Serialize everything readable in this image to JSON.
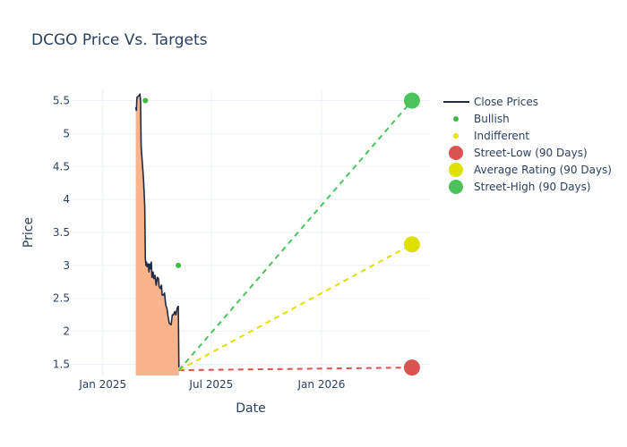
{
  "chart_data": {
    "type": "line",
    "title": "DCGO Price Vs. Targets",
    "xlabel": "Date",
    "ylabel": "Price",
    "x_range": [
      "2024-11-10",
      "2026-07-01"
    ],
    "y_range": [
      1.33,
      5.67
    ],
    "x_ticks": [
      {
        "date": "2025-01-01",
        "label": "Jan 2025"
      },
      {
        "date": "2025-07-01",
        "label": "Jul 2025"
      },
      {
        "date": "2026-01-01",
        "label": "Jan 2026"
      }
    ],
    "y_ticks": [
      {
        "value": 1.5,
        "label": "1.5"
      },
      {
        "value": 2,
        "label": "2"
      },
      {
        "value": 2.5,
        "label": "2.5"
      },
      {
        "value": 3,
        "label": "3"
      },
      {
        "value": 3.5,
        "label": "3.5"
      },
      {
        "value": 4,
        "label": "4"
      },
      {
        "value": 4.5,
        "label": "4.5"
      },
      {
        "value": 5,
        "label": "5"
      },
      {
        "value": 5.5,
        "label": "5.5"
      }
    ],
    "grid": true,
    "legend_position": "right",
    "close_prices": {
      "name": "Close Prices",
      "line_color": "#1f2a44",
      "fill_color": "#f9b48c",
      "points": [
        [
          "2025-02-25",
          5.4
        ],
        [
          "2025-02-26",
          5.35
        ],
        [
          "2025-02-27",
          5.55
        ],
        [
          "2025-03-02",
          5.57
        ],
        [
          "2025-03-04",
          5.6
        ],
        [
          "2025-03-05",
          5.5
        ],
        [
          "2025-03-06",
          4.8
        ],
        [
          "2025-03-08",
          4.55
        ],
        [
          "2025-03-10",
          4.3
        ],
        [
          "2025-03-12",
          3.9
        ],
        [
          "2025-03-13",
          3.1
        ],
        [
          "2025-03-14",
          3.0
        ],
        [
          "2025-03-15",
          3.05
        ],
        [
          "2025-03-16",
          2.98
        ],
        [
          "2025-03-18",
          3.02
        ],
        [
          "2025-03-19",
          2.9
        ],
        [
          "2025-03-20",
          3.02
        ],
        [
          "2025-03-21",
          2.95
        ],
        [
          "2025-03-23",
          3.05
        ],
        [
          "2025-03-24",
          2.82
        ],
        [
          "2025-03-26",
          2.9
        ],
        [
          "2025-03-27",
          2.8
        ],
        [
          "2025-03-29",
          2.85
        ],
        [
          "2025-03-31",
          2.7
        ],
        [
          "2025-04-02",
          2.82
        ],
        [
          "2025-04-04",
          2.8
        ],
        [
          "2025-04-05",
          2.68
        ],
        [
          "2025-04-07",
          2.65
        ],
        [
          "2025-04-09",
          2.7
        ],
        [
          "2025-04-10",
          2.55
        ],
        [
          "2025-04-12",
          2.55
        ],
        [
          "2025-04-14",
          2.58
        ],
        [
          "2025-04-16",
          2.4
        ],
        [
          "2025-04-18",
          2.35
        ],
        [
          "2025-04-20",
          2.22
        ],
        [
          "2025-04-22",
          2.12
        ],
        [
          "2025-04-25",
          2.1
        ],
        [
          "2025-04-27",
          2.25
        ],
        [
          "2025-04-29",
          2.25
        ],
        [
          "2025-05-01",
          2.3
        ],
        [
          "2025-05-03",
          2.25
        ],
        [
          "2025-05-05",
          2.35
        ],
        [
          "2025-05-07",
          2.38
        ],
        [
          "2025-05-08",
          1.45
        ]
      ]
    },
    "analyst_ratings": [
      {
        "name": "Bullish",
        "color": "#3dbb3d",
        "points": [
          [
            "2025-03-13",
            5.5
          ],
          [
            "2025-05-07",
            3.0
          ]
        ]
      },
      {
        "name": "Indifferent",
        "color": "#e6e600",
        "points": []
      }
    ],
    "targets": {
      "origin": [
        "2025-05-08",
        1.41
      ],
      "end_date": "2026-06-01",
      "series": [
        {
          "name": "Street-Low (90 Days)",
          "value": 1.45,
          "color": "#d9534f"
        },
        {
          "name": "Average Rating (90 Days)",
          "value": 3.32,
          "color": "#e0e000"
        },
        {
          "name": "Street-High (90 Days)",
          "value": 5.5,
          "color": "#4cc35a"
        }
      ]
    }
  }
}
